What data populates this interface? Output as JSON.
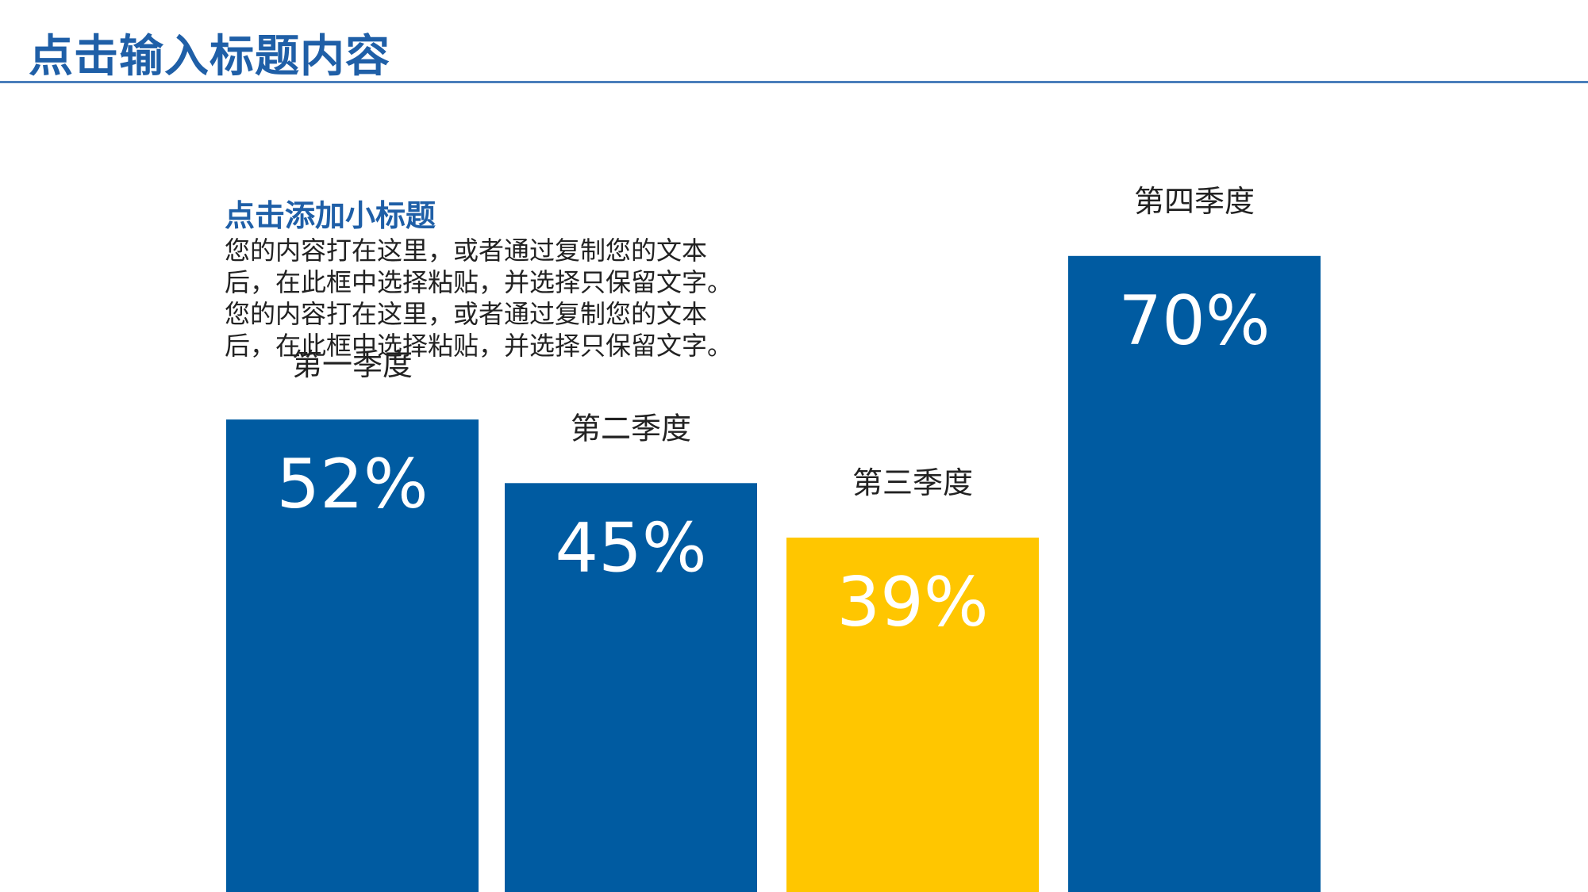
{
  "slide": {
    "title": "点击输入标题内容",
    "subtitle": "点击添加小标题",
    "body_lines": [
      "您的内容打在这里，或者通过复制您的文本",
      "后，在此框中选择粘贴，并选择只保留文字。",
      "您的内容打在这里，或者通过复制您的文本",
      "后，在此框中选择粘贴，并选择只保留文字。"
    ]
  },
  "colors": {
    "title": "#1F5FA7",
    "rule": "#4A7EBB",
    "bar_blue": "#005BA1",
    "bar_yellow": "#FFC600",
    "value_label": "#FFFFFF",
    "category_label": "#222222"
  },
  "chart_data": {
    "type": "bar",
    "categories": [
      "第一季度",
      "第二季度",
      "第三季度",
      "第四季度"
    ],
    "values": [
      52,
      45,
      39,
      70
    ],
    "value_labels": [
      "52%",
      "45%",
      "39%",
      "70%"
    ],
    "bar_colors": [
      "#005BA1",
      "#005BA1",
      "#FFC600",
      "#005BA1"
    ],
    "ylim": [
      0,
      82
    ],
    "grid": false,
    "legend": "none"
  }
}
